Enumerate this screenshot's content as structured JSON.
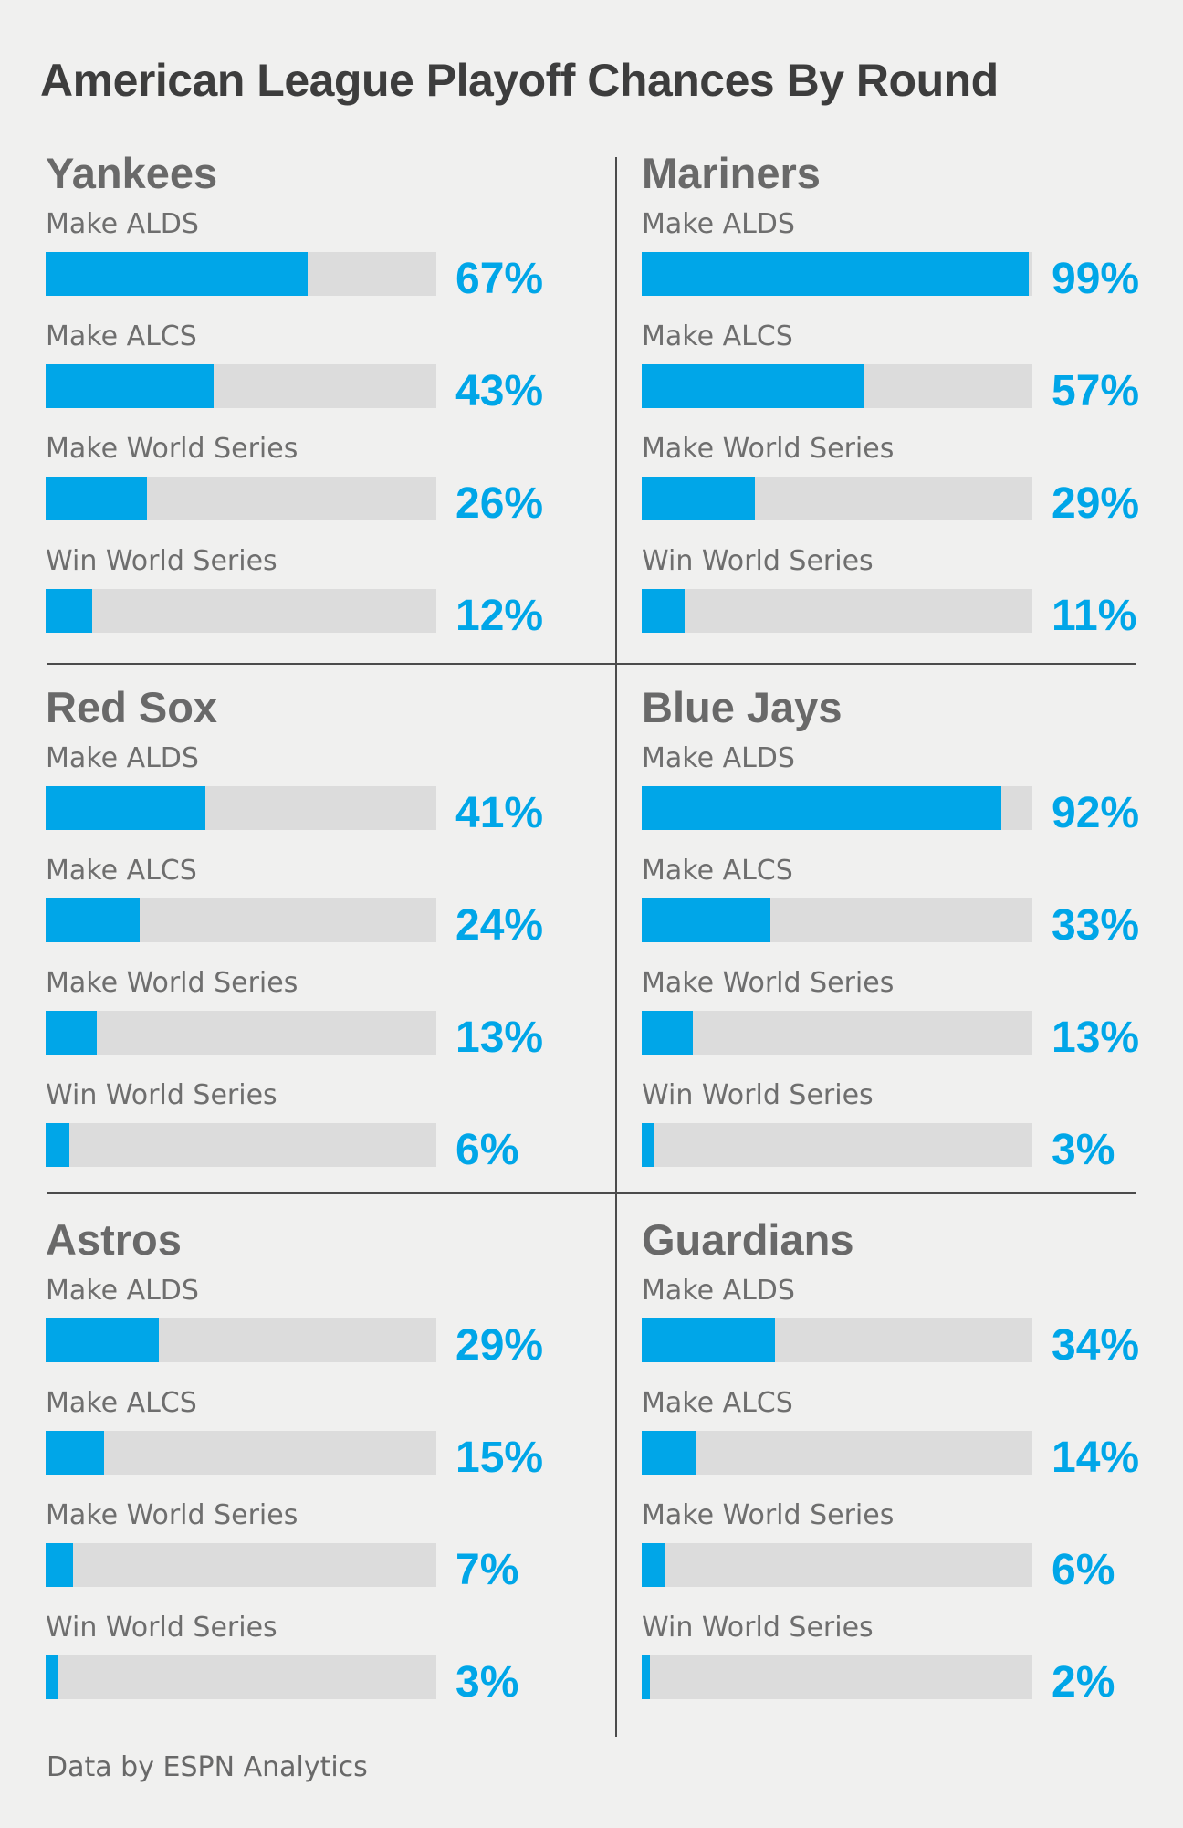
{
  "title": "American League Playoff Chances By Round",
  "footer_credit": "Data by ESPN Analytics",
  "stat_labels": [
    "Make ALDS",
    "Make ALCS",
    "Make World Series",
    "Win World Series"
  ],
  "colors": {
    "background": "#f0f0ef",
    "accent_blue": "#00a6e8",
    "bar_track": "#dcdcdc",
    "title_text": "#3d3d3d",
    "team_text": "#696969",
    "label_text": "#6e6e6e",
    "divider": "#4b4b4b"
  },
  "chart_data": {
    "type": "bar",
    "unit": "%",
    "title": "American League Playoff Chances By Round",
    "categories": [
      "Make ALDS",
      "Make ALCS",
      "Make World Series",
      "Win World Series"
    ],
    "value_range": [
      0,
      100
    ],
    "grid": false,
    "legend": "none",
    "layout": {
      "columns": 2,
      "rows": 3
    },
    "teams": [
      {
        "name": "Yankees",
        "values": [
          67,
          43,
          26,
          12
        ]
      },
      {
        "name": "Mariners",
        "values": [
          99,
          57,
          29,
          11
        ]
      },
      {
        "name": "Red Sox",
        "values": [
          41,
          24,
          13,
          6
        ]
      },
      {
        "name": "Blue Jays",
        "values": [
          92,
          33,
          13,
          3
        ]
      },
      {
        "name": "Astros",
        "values": [
          29,
          15,
          7,
          3
        ]
      },
      {
        "name": "Guardians",
        "values": [
          34,
          14,
          6,
          2
        ]
      }
    ]
  }
}
